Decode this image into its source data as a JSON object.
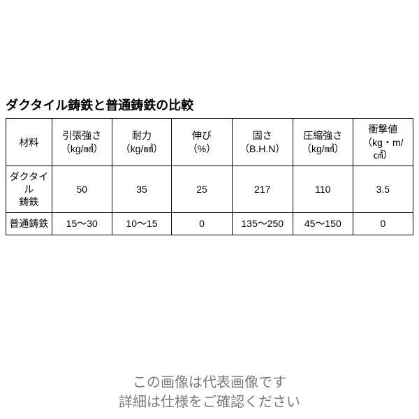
{
  "title": "ダクタイル鋳鉄と普通鋳鉄の比較",
  "table": {
    "columns": [
      {
        "header": "材料",
        "subheader": ""
      },
      {
        "header": "引張強さ",
        "subheader": "（kg/㎟）"
      },
      {
        "header": "耐力",
        "subheader": "（kg/㎟）"
      },
      {
        "header": "伸び",
        "subheader": "（%）"
      },
      {
        "header": "固さ",
        "subheader": "（B.H.N）"
      },
      {
        "header": "圧縮強さ",
        "subheader": "（kg/㎟）"
      },
      {
        "header": "衝撃値",
        "subheader": "（kg・m/㎠）"
      }
    ],
    "rows": [
      {
        "label_line1": "ダクタイル",
        "label_line2": "鋳鉄",
        "values": [
          "50",
          "35",
          "25",
          "217",
          "110",
          "3.5"
        ]
      },
      {
        "label_line1": "普通鋳鉄",
        "label_line2": "",
        "values": [
          "15～30",
          "10～15",
          "0",
          "135～250",
          "45～150",
          "0"
        ]
      }
    ]
  },
  "footer": {
    "line1": "この画像は代表画像です",
    "line2": "詳細は仕様をご確認ください"
  },
  "colors": {
    "text": "#000000",
    "footer_text": "#7a7a7a",
    "border": "#000000",
    "background": "#ffffff"
  }
}
